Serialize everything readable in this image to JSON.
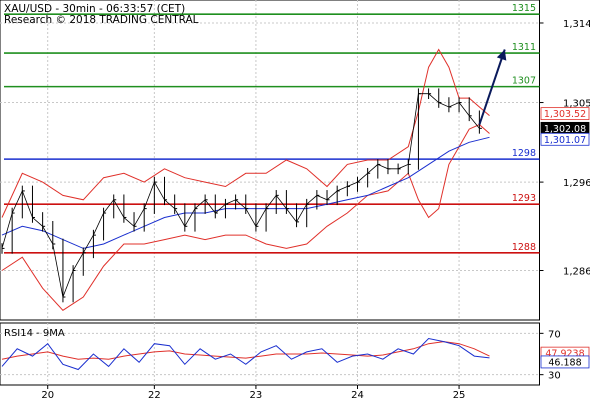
{
  "header": {
    "line1": "XAU/USD - 30min - 06:33:57 (CET)",
    "line2": "Research © 2018 TRADING CENTRAL"
  },
  "rsi_panel": {
    "label": "RSI14 - 9MA"
  },
  "colors": {
    "price": "#000000",
    "bollinger": "#e0302a",
    "moving_average": "#1a2fcf",
    "resistance": "#1f8f1f",
    "pivot": "#1a2fcf",
    "support": "#cc1010",
    "projection_arrow": "#0a1a5c",
    "last_price_box": "#000000",
    "grid": "#c8c8c8"
  },
  "chart_data": [
    {
      "type": "line",
      "title": "XAU/USD - 30min",
      "x_tick_labels": [
        "20",
        "22",
        "23",
        "24",
        "25"
      ],
      "y_tick_labels": [
        "1,314",
        "1,305",
        "1,296",
        "1,286"
      ],
      "y_ticks": [
        1314,
        1305,
        1296,
        1286
      ],
      "ylim": [
        1280.4,
        1316.6
      ],
      "x_range": [
        0,
        102
      ],
      "x_tick_positions": [
        9,
        30,
        50,
        70,
        90
      ],
      "grid": true,
      "levels": [
        {
          "label": "1315",
          "value": 1315.0,
          "kind": "resistance"
        },
        {
          "label": "1311",
          "value": 1310.6,
          "kind": "resistance"
        },
        {
          "label": "1307",
          "value": 1306.8,
          "kind": "resistance"
        },
        {
          "label": "1298",
          "value": 1298.6,
          "kind": "pivot"
        },
        {
          "label": "1293",
          "value": 1293.5,
          "kind": "support"
        },
        {
          "label": "1288",
          "value": 1288.0,
          "kind": "support"
        }
      ],
      "price_labels": [
        {
          "label": "1,303.52",
          "value": 1303.52,
          "style": "upper-band"
        },
        {
          "label": "1,302.08",
          "value": 1302.08,
          "style": "last-price"
        },
        {
          "label": "1,301.07",
          "value": 1301.07,
          "style": "moving-average"
        }
      ],
      "price": {
        "x": [
          0,
          2,
          4,
          6,
          8,
          10,
          12,
          14,
          16,
          18,
          20,
          22,
          24,
          26,
          28,
          30,
          32,
          34,
          36,
          38,
          40,
          42,
          44,
          46,
          48,
          50,
          52,
          54,
          56,
          58,
          60,
          62,
          64,
          66,
          68,
          70,
          72,
          74,
          76,
          78,
          80,
          82,
          84,
          86,
          88,
          90,
          92,
          94
        ],
        "y": [
          1288.5,
          1292.5,
          1295.0,
          1292.0,
          1291.0,
          1289.0,
          1283.0,
          1286.0,
          1288.0,
          1290.0,
          1292.5,
          1294.0,
          1292.0,
          1291.0,
          1293.0,
          1296.0,
          1294.0,
          1293.0,
          1291.0,
          1293.0,
          1294.0,
          1292.5,
          1293.5,
          1294.0,
          1293.0,
          1291.0,
          1293.0,
          1294.5,
          1293.0,
          1291.5,
          1293.5,
          1294.5,
          1294.0,
          1295.0,
          1295.5,
          1296.0,
          1297.0,
          1298.0,
          1297.5,
          1297.5,
          1298.0,
          1306.0,
          1306.0,
          1305.0,
          1304.5,
          1305.0,
          1303.5,
          1302.08
        ]
      },
      "bollinger_upper": {
        "x": [
          0,
          4,
          8,
          12,
          16,
          20,
          24,
          28,
          32,
          36,
          40,
          44,
          48,
          52,
          56,
          60,
          64,
          68,
          72,
          76,
          80,
          82,
          84,
          86,
          88,
          90,
          92,
          94,
          96
        ],
        "y": [
          1292.0,
          1297.0,
          1296.0,
          1294.5,
          1294.0,
          1296.5,
          1297.0,
          1296.0,
          1297.5,
          1296.5,
          1296.0,
          1295.5,
          1297.0,
          1297.0,
          1298.5,
          1297.5,
          1295.5,
          1298.0,
          1298.5,
          1298.5,
          1300.0,
          1304.0,
          1309.0,
          1311.0,
          1309.0,
          1305.5,
          1305.5,
          1304.5,
          1303.52
        ]
      },
      "bollinger_lower": {
        "x": [
          0,
          4,
          8,
          12,
          16,
          20,
          24,
          28,
          32,
          36,
          40,
          44,
          48,
          52,
          56,
          60,
          64,
          68,
          72,
          76,
          80,
          82,
          84,
          86,
          88,
          90,
          92,
          94,
          96
        ],
        "y": [
          1286.0,
          1287.5,
          1284.0,
          1281.5,
          1283.0,
          1286.5,
          1289.0,
          1289.0,
          1289.5,
          1290.0,
          1289.5,
          1290.0,
          1290.0,
          1289.0,
          1288.5,
          1289.0,
          1291.0,
          1292.5,
          1294.5,
          1295.0,
          1297.0,
          1294.0,
          1292.0,
          1293.0,
          1298.0,
          1300.0,
          1302.0,
          1302.5,
          1301.5
        ]
      },
      "moving_average": {
        "x": [
          0,
          4,
          8,
          12,
          16,
          20,
          24,
          28,
          32,
          36,
          40,
          44,
          48,
          52,
          56,
          60,
          64,
          68,
          72,
          76,
          80,
          84,
          88,
          92,
          96
        ],
        "y": [
          1290.0,
          1291.0,
          1290.5,
          1289.5,
          1288.5,
          1289.0,
          1290.0,
          1291.0,
          1292.0,
          1292.5,
          1292.5,
          1293.0,
          1293.0,
          1293.0,
          1293.0,
          1293.0,
          1293.5,
          1294.0,
          1294.5,
          1295.5,
          1296.5,
          1298.0,
          1299.5,
          1300.5,
          1301.07
        ]
      },
      "projection": {
        "x": [
          94,
          99
        ],
        "y": [
          1302.5,
          1311.0
        ]
      }
    },
    {
      "type": "line",
      "title": "RSI14 - 9MA",
      "y_tick_labels": [
        "70",
        "30"
      ],
      "y_ticks": [
        70,
        30
      ],
      "ylim": [
        20,
        80
      ],
      "x_range": [
        0,
        102
      ],
      "value_labels": [
        {
          "label": "47.9238",
          "value": 47.92,
          "series": "ma"
        },
        {
          "label": "46.188",
          "value": 46.19,
          "series": "rsi"
        }
      ],
      "rsi": {
        "x": [
          0,
          3,
          6,
          9,
          12,
          15,
          18,
          21,
          24,
          27,
          30,
          33,
          36,
          39,
          42,
          45,
          48,
          51,
          54,
          57,
          60,
          63,
          66,
          69,
          72,
          75,
          78,
          81,
          84,
          87,
          90,
          93,
          96
        ],
        "y": [
          38,
          55,
          48,
          60,
          40,
          35,
          50,
          38,
          55,
          42,
          60,
          58,
          40,
          55,
          45,
          50,
          40,
          52,
          58,
          45,
          52,
          55,
          42,
          48,
          50,
          45,
          55,
          50,
          65,
          62,
          58,
          48,
          46.19
        ]
      },
      "ma": {
        "x": [
          0,
          3,
          6,
          9,
          12,
          15,
          18,
          21,
          24,
          27,
          30,
          33,
          36,
          39,
          42,
          45,
          48,
          51,
          54,
          57,
          60,
          63,
          66,
          69,
          72,
          75,
          78,
          81,
          84,
          87,
          90,
          93,
          96
        ],
        "y": [
          45,
          48,
          50,
          52,
          48,
          45,
          46,
          45,
          48,
          50,
          52,
          53,
          50,
          49,
          48,
          47,
          46,
          48,
          50,
          50,
          50,
          51,
          50,
          49,
          48,
          49,
          52,
          55,
          60,
          62,
          60,
          55,
          47.92
        ]
      }
    }
  ]
}
